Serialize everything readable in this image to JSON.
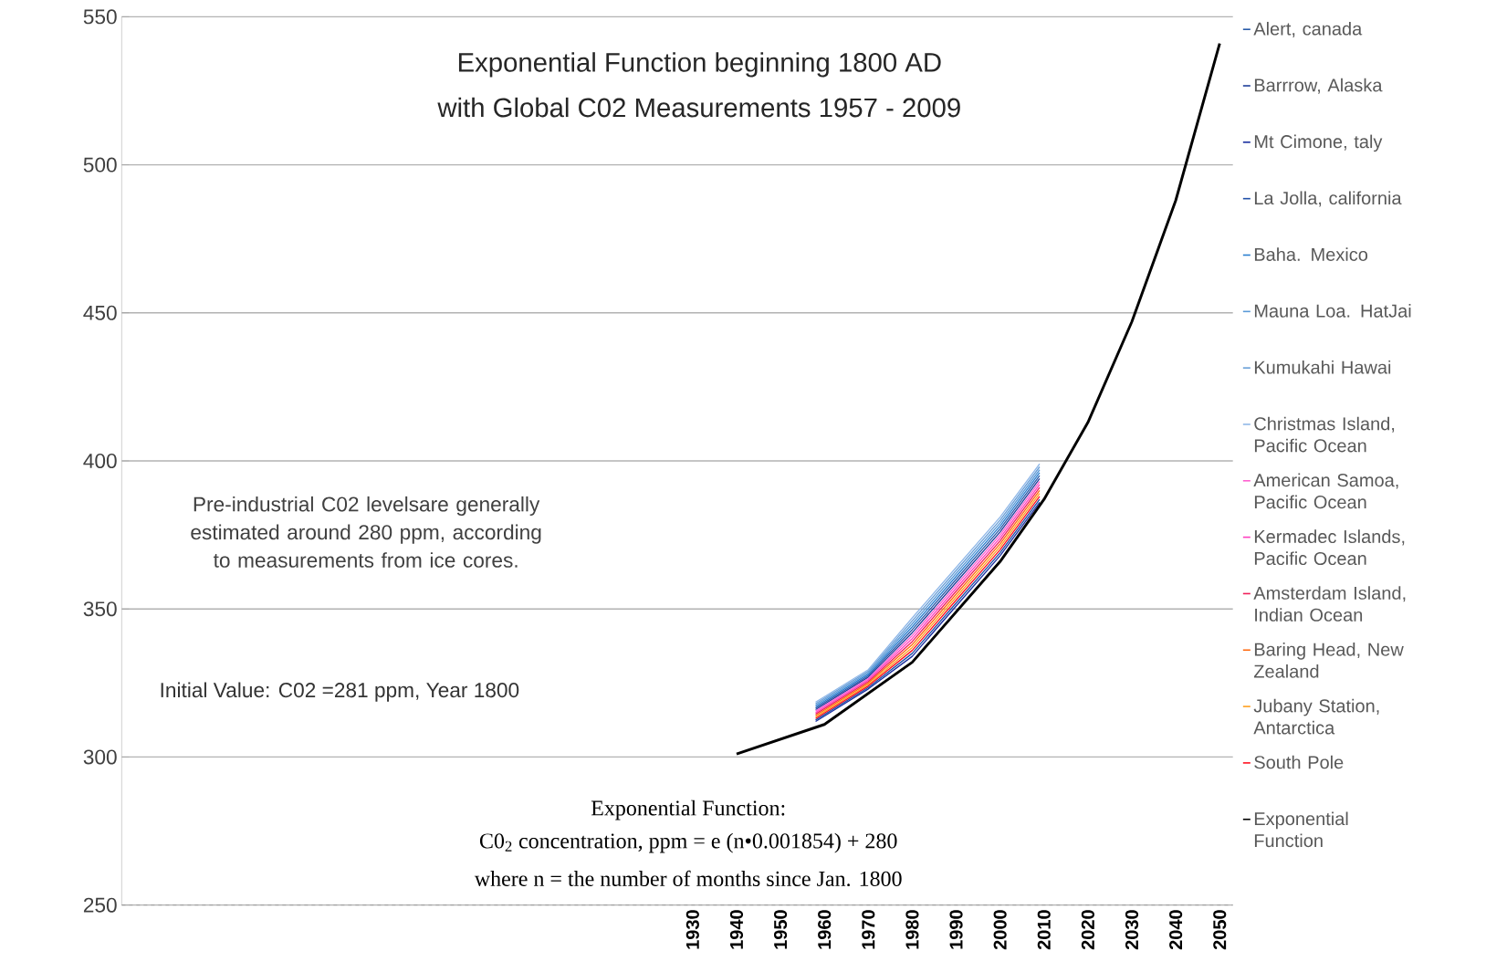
{
  "chart_data": {
    "type": "line",
    "title": "Exponential Function beginning 1800 AD",
    "subtitle": "with Global C02 Measurements 1957 - 2009",
    "annotations": [
      "Pre-industrial C02 levelsare generally estimated around 280 ppm, according to measurements from ice cores.",
      "Initial Value: C02 =281 ppm, Year 1800",
      "Exponential Function:",
      "C0$_{2}$ concentration, ppm = e (n•0.001854) + 280",
      "where n = the number of months since Jan. 1800"
    ],
    "xlim": [
      1800,
      2053
    ],
    "ylim": [
      250,
      550
    ],
    "xticks": [
      1930,
      1940,
      1950,
      1960,
      1970,
      1980,
      1990,
      2000,
      2010,
      2020,
      2030,
      2040,
      2050
    ],
    "yticks": [
      250,
      300,
      350,
      400,
      450,
      500,
      550
    ],
    "grid": "y",
    "legend": "right",
    "marker": "none",
    "line_style": "solid",
    "series": [
      {
        "name": "Alert, canada",
        "color": "#2a5caa",
        "x": [
          1958,
          1970,
          1980,
          1990,
          2000,
          2009
        ],
        "values": [
          316.5,
          327.5,
          343,
          360,
          377,
          395
        ]
      },
      {
        "name": "Barrrow, Alaska",
        "color": "#1f3f99",
        "x": [
          1958,
          1970,
          1980,
          1990,
          2000,
          2009
        ],
        "values": [
          316,
          327,
          342,
          359,
          376,
          394
        ]
      },
      {
        "name": "Mt Cimone, taly",
        "color": "#1a2fa0",
        "x": [
          1958,
          1970,
          1980,
          1990,
          2000,
          2009
        ],
        "values": [
          312,
          323,
          334,
          351,
          368,
          386
        ]
      },
      {
        "name": "La Jolla, california",
        "color": "#2050a8",
        "x": [
          1958,
          1970,
          1980,
          1990,
          2000,
          2009
        ],
        "values": [
          312.5,
          323.5,
          335,
          352,
          369,
          387
        ]
      },
      {
        "name": "Baha. Mexico",
        "color": "#2a7fd0",
        "x": [
          1958,
          1970,
          1980,
          1990,
          2000,
          2009
        ],
        "values": [
          317,
          328,
          344,
          361,
          378,
          396
        ]
      },
      {
        "name": "Mauna Loa. HatJai",
        "color": "#5a9ad8",
        "x": [
          1958,
          1970,
          1980,
          1990,
          2000,
          2009
        ],
        "values": [
          317.5,
          328.5,
          345,
          362,
          379,
          397
        ]
      },
      {
        "name": "Kumukahi Hawai",
        "color": "#6aa0d8",
        "x": [
          1958,
          1970,
          1980,
          1990,
          2000,
          2009
        ],
        "values": [
          318,
          329,
          346,
          363,
          380,
          398
        ]
      },
      {
        "name": "Christmas Island, Pacific Ocean",
        "color": "#90b8e8",
        "x": [
          1958,
          1970,
          1980,
          1990,
          2000,
          2009
        ],
        "values": [
          318.5,
          329.5,
          347,
          364,
          381,
          399
        ]
      },
      {
        "name": "American Samoa, Pacific Ocean",
        "color": "#ff60d0",
        "x": [
          1958,
          1970,
          1980,
          1990,
          2000,
          2009
        ],
        "values": [
          315.5,
          326.5,
          341,
          358,
          375,
          393
        ]
      },
      {
        "name": "Kermadec Islands, Pacific Ocean",
        "color": "#ff40c0",
        "x": [
          1958,
          1970,
          1980,
          1990,
          2000,
          2009
        ],
        "values": [
          315,
          326,
          340,
          357,
          374,
          392
        ]
      },
      {
        "name": "Amsterdam Island, Indian Ocean",
        "color": "#f0205a",
        "x": [
          1958,
          1970,
          1980,
          1990,
          2000,
          2009
        ],
        "values": [
          314.5,
          325.5,
          339,
          356,
          373,
          391
        ]
      },
      {
        "name": "Baring Head, New Zealand",
        "color": "#ff6a10",
        "x": [
          1958,
          1970,
          1980,
          1990,
          2000,
          2009
        ],
        "values": [
          314,
          325,
          338,
          355,
          372,
          390
        ]
      },
      {
        "name": "Jubany Station, Antarctica",
        "color": "#ffa020",
        "x": [
          1958,
          1970,
          1980,
          1990,
          2000,
          2009
        ],
        "values": [
          313.5,
          324.5,
          337,
          354,
          371,
          389
        ]
      },
      {
        "name": "South Pole",
        "color": "#ff1020",
        "x": [
          1958,
          1970,
          1980,
          1990,
          2000,
          2009
        ],
        "values": [
          313,
          324,
          336,
          353,
          370,
          388
        ]
      },
      {
        "name": "Exponential Function",
        "color": "#000000",
        "x": [
          1940,
          1960,
          1980,
          2000,
          2010,
          2020,
          2030,
          2040,
          2050
        ],
        "values": [
          301,
          311,
          332,
          366,
          387,
          413,
          447,
          488,
          541
        ]
      }
    ]
  }
}
